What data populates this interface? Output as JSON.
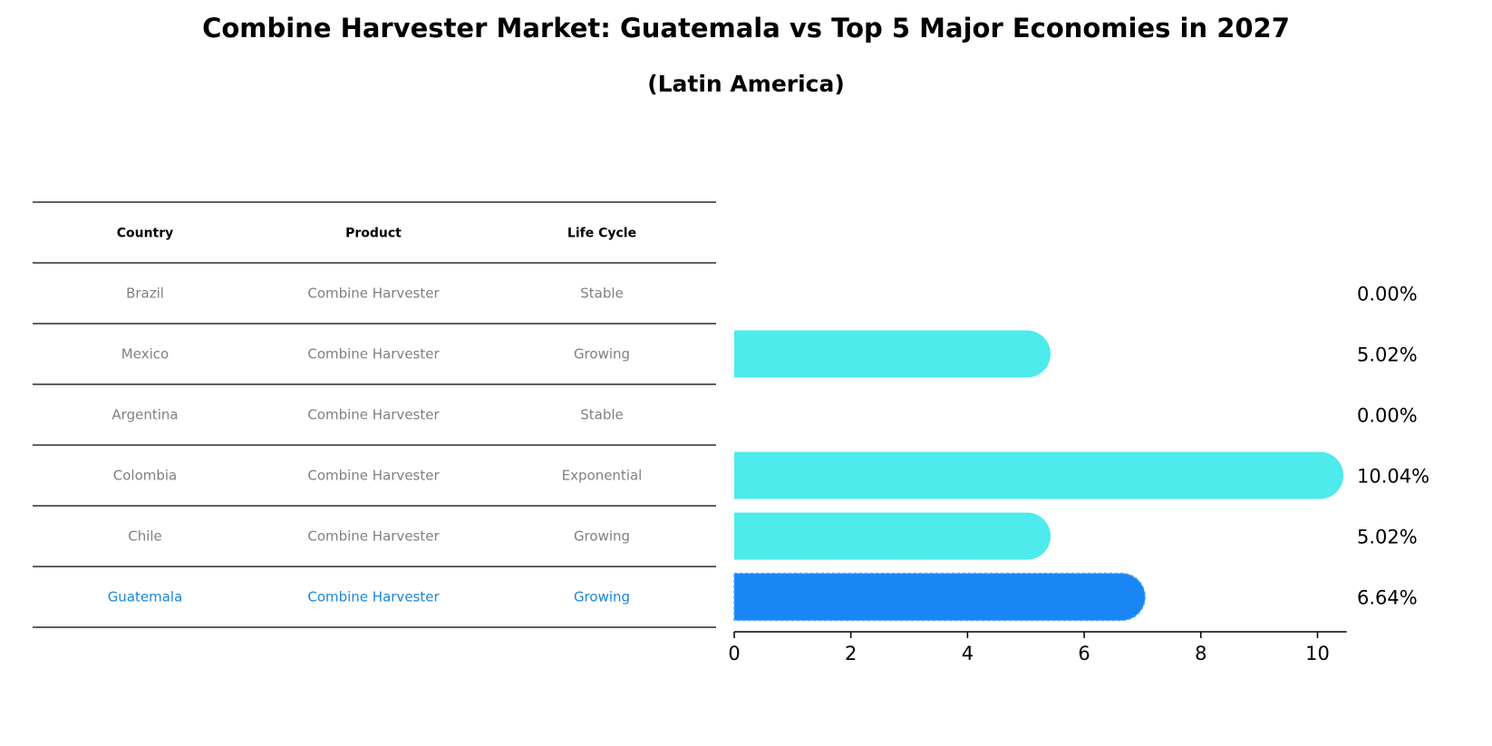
{
  "title": "Combine Harvester Market: Guatemala vs Top 5 Major Economies in 2027",
  "subtitle": "(Latin America)",
  "table": {
    "headers": [
      "Country",
      "Product",
      "Life Cycle"
    ],
    "rows": [
      {
        "country": "Brazil",
        "product": "Combine Harvester",
        "life_cycle": "Stable"
      },
      {
        "country": "Mexico",
        "product": "Combine Harvester",
        "life_cycle": "Growing"
      },
      {
        "country": "Argentina",
        "product": "Combine Harvester",
        "life_cycle": "Stable"
      },
      {
        "country": "Colombia",
        "product": "Combine Harvester",
        "life_cycle": "Exponential"
      },
      {
        "country": "Chile",
        "product": "Combine Harvester",
        "life_cycle": "Growing"
      },
      {
        "country": "Guatemala",
        "product": "Combine Harvester",
        "life_cycle": "Growing"
      }
    ],
    "highlight_country": "Guatemala"
  },
  "chart_data": {
    "type": "bar",
    "orientation": "horizontal",
    "title": "Combine Harvester Market: Guatemala vs Top 5 Major Economies in 2027",
    "subtitle": "(Latin America)",
    "categories": [
      "Brazil",
      "Mexico",
      "Argentina",
      "Colombia",
      "Chile",
      "Guatemala"
    ],
    "values": [
      0.0,
      5.02,
      0.0,
      10.04,
      5.02,
      6.64
    ],
    "value_labels": [
      "0.00%",
      "5.02%",
      "0.00%",
      "10.04%",
      "5.02%",
      "6.64%"
    ],
    "xlim": [
      0,
      10.5
    ],
    "xticks": [
      0,
      2,
      4,
      6,
      8,
      10
    ],
    "xlabel": "",
    "ylabel": "",
    "grid": false,
    "colors": {
      "default": "#4debeb",
      "highlight": "#1a86f5"
    }
  }
}
